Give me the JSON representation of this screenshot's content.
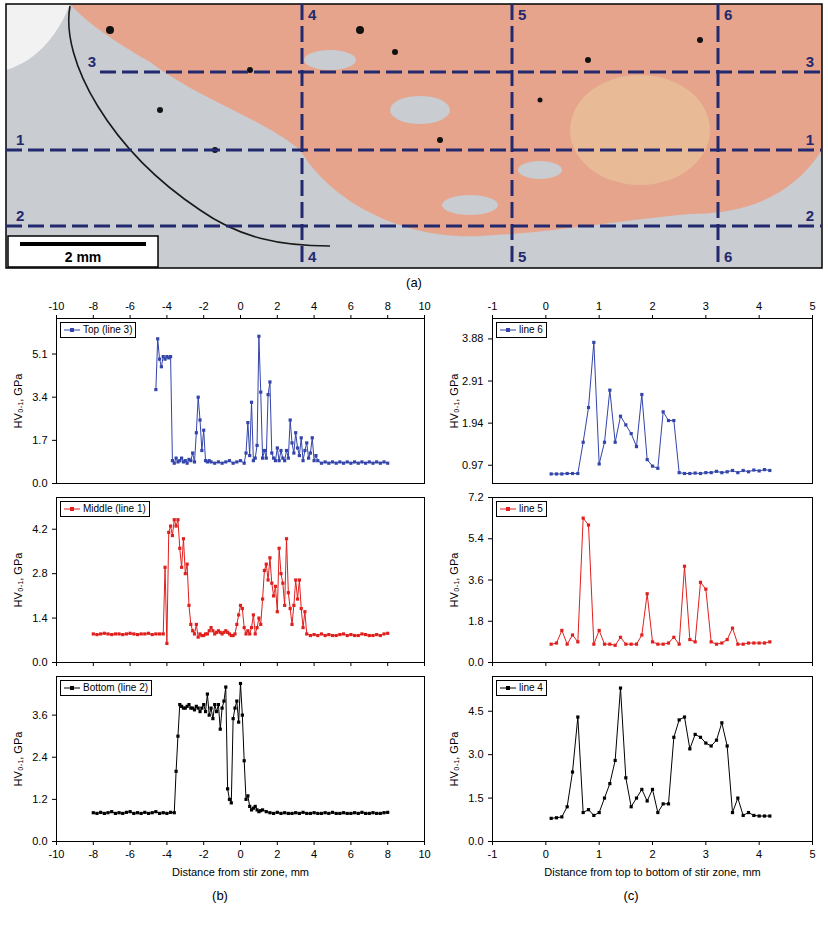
{
  "micrograph": {
    "panel": "(a)",
    "scale_bar": "2 mm",
    "horizontal_lines": [
      "3",
      "1",
      "2"
    ],
    "vertical_lines": [
      "4",
      "5",
      "6"
    ]
  },
  "chart_data": [
    {
      "type": "line",
      "panel": "(b)",
      "legend": "top-left",
      "y_label": "HV₀.₁, GPa",
      "xlim": [
        -10,
        10
      ],
      "xticks": [
        -10,
        -8,
        -6,
        -4,
        -2,
        0,
        2,
        4,
        6,
        8,
        10
      ],
      "ylim": [
        0,
        6.5
      ],
      "yticks": [
        {
          "value": 0,
          "label": "0.0"
        },
        1.7,
        3.4,
        5.1
      ],
      "x": [
        -4.6,
        -4.5,
        -4.4,
        -4.3,
        -4.2,
        -4.1,
        -4.0,
        -3.9,
        -3.8,
        -3.7,
        -3.6,
        -3.5,
        -3.4,
        -3.3,
        -3.2,
        -3.1,
        -3.0,
        -2.9,
        -2.8,
        -2.7,
        -2.6,
        -2.5,
        -2.4,
        -2.3,
        -2.2,
        -2.1,
        -2.0,
        -1.9,
        -1.8,
        -1.7,
        -1.6,
        -1.4,
        -1.2,
        -1.0,
        -0.8,
        -0.6,
        -0.4,
        -0.2,
        0.0,
        0.2,
        0.3,
        0.4,
        0.5,
        0.6,
        0.7,
        0.8,
        0.9,
        1.0,
        1.1,
        1.2,
        1.3,
        1.4,
        1.5,
        1.6,
        1.7,
        1.8,
        1.9,
        2.0,
        2.1,
        2.2,
        2.3,
        2.4,
        2.5,
        2.6,
        2.7,
        2.8,
        2.9,
        3.0,
        3.1,
        3.2,
        3.3,
        3.4,
        3.5,
        3.6,
        3.7,
        3.8,
        3.9,
        4.0,
        4.1,
        4.2,
        4.4,
        4.6,
        4.8,
        5.0,
        5.2,
        5.4,
        5.6,
        5.8,
        6.0,
        6.2,
        6.4,
        6.6,
        6.8,
        7.0,
        7.2,
        7.4,
        7.6,
        7.8,
        8.0
      ],
      "series": [
        {
          "name": "Top (line 3)",
          "color": "#3344aa",
          "marker": "square",
          "values": [
            3.7,
            5.7,
            4.9,
            4.6,
            5.0,
            4.9,
            5.0,
            4.95,
            5.0,
            0.9,
            0.8,
            1.0,
            0.85,
            0.9,
            1.0,
            0.85,
            0.9,
            0.8,
            0.95,
            0.9,
            1.2,
            0.85,
            2.0,
            3.4,
            2.5,
            1.3,
            2.1,
            0.9,
            0.85,
            0.9,
            0.85,
            0.8,
            0.85,
            0.8,
            0.85,
            0.9,
            0.8,
            0.85,
            0.9,
            0.8,
            1.2,
            2.4,
            1.1,
            3.2,
            0.9,
            1.0,
            1.5,
            5.8,
            3.6,
            1.0,
            1.3,
            1.0,
            3.5,
            4.0,
            1.2,
            1.0,
            0.9,
            1.4,
            0.9,
            1.3,
            1.0,
            0.9,
            1.3,
            1.0,
            2.5,
            1.6,
            1.2,
            2.0,
            1.4,
            1.1,
            1.8,
            0.9,
            1.3,
            1.6,
            1.0,
            1.2,
            1.8,
            0.9,
            1.1,
            0.9,
            0.8,
            0.85,
            0.8,
            0.85,
            0.8,
            0.85,
            0.8,
            0.85,
            0.8,
            0.85,
            0.8,
            0.85,
            0.8,
            0.85,
            0.8,
            0.85,
            0.8,
            0.85,
            0.8
          ]
        }
      ]
    },
    {
      "type": "line",
      "panel": "(b)",
      "legend": "top-left",
      "y_label": "HV₀.₁, GPa",
      "tick_labels": "y",
      "xlim": [
        -10,
        10
      ],
      "xticks": [
        -10,
        -8,
        -6,
        -4,
        -2,
        0,
        2,
        4,
        6,
        8,
        10
      ],
      "ylim": [
        0,
        5.2
      ],
      "yticks": [
        {
          "value": 0,
          "label": "0.0"
        },
        1.4,
        2.8,
        4.2
      ],
      "x": [
        -8.0,
        -7.8,
        -7.6,
        -7.4,
        -7.2,
        -7.0,
        -6.8,
        -6.6,
        -6.4,
        -6.2,
        -6.0,
        -5.8,
        -5.6,
        -5.4,
        -5.2,
        -5.0,
        -4.8,
        -4.6,
        -4.4,
        -4.2,
        -4.1,
        -4.0,
        -3.9,
        -3.8,
        -3.7,
        -3.6,
        -3.5,
        -3.4,
        -3.3,
        -3.2,
        -3.1,
        -3.0,
        -2.9,
        -2.8,
        -2.7,
        -2.6,
        -2.5,
        -2.4,
        -2.3,
        -2.2,
        -2.1,
        -2.0,
        -1.9,
        -1.8,
        -1.7,
        -1.6,
        -1.5,
        -1.4,
        -1.3,
        -1.2,
        -1.1,
        -1.0,
        -0.9,
        -0.8,
        -0.7,
        -0.6,
        -0.5,
        -0.4,
        -0.3,
        -0.2,
        -0.1,
        0.0,
        0.1,
        0.2,
        0.3,
        0.4,
        0.5,
        0.6,
        0.7,
        0.8,
        0.9,
        1.0,
        1.1,
        1.2,
        1.3,
        1.4,
        1.5,
        1.6,
        1.7,
        1.8,
        1.9,
        2.0,
        2.1,
        2.2,
        2.3,
        2.4,
        2.5,
        2.6,
        2.7,
        2.8,
        2.9,
        3.0,
        3.1,
        3.2,
        3.3,
        3.4,
        3.5,
        3.6,
        3.8,
        4.0,
        4.2,
        4.4,
        4.6,
        4.8,
        5.0,
        5.2,
        5.4,
        5.6,
        5.8,
        6.0,
        6.2,
        6.4,
        6.6,
        6.8,
        7.0,
        7.2,
        7.4,
        7.6,
        7.8,
        8.0
      ],
      "series": [
        {
          "name": "Middle (line 1)",
          "color": "#e0201e",
          "marker": "square",
          "values": [
            0.9,
            0.88,
            0.9,
            0.92,
            0.9,
            0.88,
            0.9,
            0.9,
            0.88,
            0.9,
            0.92,
            0.9,
            0.88,
            0.9,
            0.9,
            0.92,
            0.88,
            0.9,
            0.9,
            0.9,
            3.0,
            0.6,
            4.1,
            4.3,
            4.0,
            4.5,
            4.3,
            4.5,
            3.6,
            3.0,
            3.9,
            2.8,
            3.1,
            1.8,
            1.2,
            1.0,
            0.9,
            1.2,
            0.8,
            0.9,
            0.85,
            0.85,
            0.9,
            0.9,
            1.0,
            1.1,
            1.0,
            0.9,
            0.95,
            1.0,
            0.95,
            0.9,
            0.95,
            1.0,
            0.95,
            0.9,
            0.85,
            0.85,
            0.9,
            1.2,
            1.5,
            1.8,
            1.7,
            1.1,
            0.9,
            1.0,
            0.9,
            1.1,
            1.5,
            0.9,
            1.1,
            1.4,
            1.2,
            2.0,
            2.9,
            3.1,
            2.6,
            3.3,
            2.5,
            2.1,
            2.4,
            1.6,
            3.6,
            2.8,
            2.5,
            1.8,
            3.9,
            2.2,
            1.7,
            1.2,
            1.8,
            2.6,
            2.0,
            2.6,
            1.7,
            1.1,
            1.6,
            0.9,
            0.85,
            0.88,
            0.85,
            0.9,
            0.85,
            0.88,
            0.85,
            0.85,
            0.88,
            0.9,
            0.85,
            0.88,
            0.85,
            0.85,
            0.9,
            0.88,
            0.85,
            0.85,
            0.88,
            0.85,
            0.9,
            0.92
          ]
        }
      ]
    },
    {
      "type": "line",
      "panel": "(b)",
      "legend": "top-left",
      "y_label": "HV₀.₁, GPa",
      "x_label": "Distance from stir zone, mm",
      "xlim": [
        -10,
        10
      ],
      "xticks": [
        -10,
        -8,
        -6,
        -4,
        -2,
        0,
        2,
        4,
        6,
        8,
        10
      ],
      "ylim": [
        0,
        4.7
      ],
      "yticks": [
        {
          "value": 0,
          "label": "0.0"
        },
        1.2,
        2.4,
        3.6
      ],
      "x": [
        -8.0,
        -7.8,
        -7.6,
        -7.4,
        -7.2,
        -7.0,
        -6.8,
        -6.6,
        -6.4,
        -6.2,
        -6.0,
        -5.8,
        -5.6,
        -5.4,
        -5.2,
        -5.0,
        -4.8,
        -4.6,
        -4.4,
        -4.2,
        -4.0,
        -3.8,
        -3.6,
        -3.5,
        -3.4,
        -3.3,
        -3.2,
        -3.1,
        -3.0,
        -2.9,
        -2.8,
        -2.7,
        -2.6,
        -2.5,
        -2.4,
        -2.3,
        -2.2,
        -2.1,
        -2.0,
        -1.9,
        -1.8,
        -1.7,
        -1.6,
        -1.5,
        -1.4,
        -1.3,
        -1.2,
        -1.1,
        -1.0,
        -0.9,
        -0.8,
        -0.7,
        -0.6,
        -0.5,
        -0.4,
        -0.3,
        -0.2,
        -0.1,
        0.0,
        0.1,
        0.2,
        0.3,
        0.4,
        0.5,
        0.6,
        0.7,
        0.8,
        0.9,
        1.0,
        1.1,
        1.2,
        1.4,
        1.6,
        1.8,
        2.0,
        2.2,
        2.4,
        2.6,
        2.8,
        3.0,
        3.2,
        3.4,
        3.6,
        3.8,
        4.0,
        4.2,
        4.4,
        4.6,
        4.8,
        5.0,
        5.2,
        5.4,
        5.6,
        5.8,
        6.0,
        6.2,
        6.4,
        6.6,
        6.8,
        7.0,
        7.2,
        7.4,
        7.6,
        7.8,
        8.0
      ],
      "series": [
        {
          "name": "Bottom (line 2)",
          "color": "#000000",
          "marker": "square",
          "values": [
            0.82,
            0.8,
            0.83,
            0.8,
            0.82,
            0.85,
            0.8,
            0.82,
            0.8,
            0.83,
            0.85,
            0.8,
            0.82,
            0.8,
            0.83,
            0.8,
            0.82,
            0.85,
            0.8,
            0.82,
            0.8,
            0.83,
            0.82,
            2.0,
            3.0,
            3.9,
            3.85,
            3.8,
            3.8,
            3.85,
            3.9,
            3.8,
            3.8,
            3.75,
            3.85,
            3.8,
            3.7,
            3.8,
            3.9,
            3.7,
            4.2,
            3.6,
            3.8,
            3.5,
            3.9,
            3.7,
            3.9,
            3.2,
            3.8,
            4.0,
            4.4,
            1.5,
            1.2,
            1.1,
            3.5,
            3.8,
            4.0,
            3.4,
            4.5,
            3.6,
            2.3,
            1.2,
            1.3,
            1.0,
            0.9,
            0.95,
            1.0,
            0.9,
            0.85,
            0.88,
            0.9,
            0.85,
            0.82,
            0.8,
            0.83,
            0.8,
            0.82,
            0.8,
            0.8,
            0.82,
            0.8,
            0.83,
            0.8,
            0.8,
            0.82,
            0.8,
            0.8,
            0.82,
            0.8,
            0.83,
            0.8,
            0.8,
            0.82,
            0.8,
            0.8,
            0.82,
            0.8,
            0.83,
            0.8,
            0.8,
            0.82,
            0.8,
            0.8,
            0.82,
            0.83
          ]
        }
      ]
    },
    {
      "type": "line",
      "panel": "(c)",
      "legend": "top-left",
      "y_label": "HV₀.₁, GPa",
      "xlim": [
        -1,
        5
      ],
      "xticks": [
        -1,
        0,
        1,
        2,
        3,
        4,
        5
      ],
      "ylim": [
        0.55,
        4.35
      ],
      "yticks": [
        0.97,
        1.94,
        2.91,
        3.88
      ],
      "x": [
        0.1,
        0.2,
        0.3,
        0.4,
        0.5,
        0.6,
        0.7,
        0.8,
        0.9,
        1.0,
        1.1,
        1.2,
        1.3,
        1.4,
        1.5,
        1.6,
        1.7,
        1.8,
        1.9,
        2.0,
        2.1,
        2.2,
        2.3,
        2.4,
        2.5,
        2.6,
        2.7,
        2.8,
        2.9,
        3.0,
        3.1,
        3.2,
        3.3,
        3.4,
        3.5,
        3.6,
        3.7,
        3.8,
        3.9,
        4.0,
        4.1,
        4.2
      ],
      "series": [
        {
          "name": "line 6",
          "color": "#3344aa",
          "marker": "square",
          "values": [
            0.77,
            0.77,
            0.77,
            0.78,
            0.78,
            0.78,
            1.5,
            2.3,
            3.8,
            1.0,
            1.5,
            2.7,
            1.5,
            2.1,
            1.9,
            1.7,
            1.4,
            2.6,
            1.1,
            0.95,
            0.9,
            2.2,
            2.0,
            2.0,
            0.8,
            0.78,
            0.78,
            0.79,
            0.78,
            0.8,
            0.8,
            0.83,
            0.8,
            0.82,
            0.85,
            0.8,
            0.85,
            0.82,
            0.86,
            0.84,
            0.87,
            0.85
          ]
        }
      ]
    },
    {
      "type": "line",
      "panel": "(c)",
      "legend": "top-left",
      "y_label": "HV₀.₁, GPa",
      "tick_labels": "y",
      "xlim": [
        -1,
        5
      ],
      "xticks": [
        -1,
        0,
        1,
        2,
        3,
        4,
        5
      ],
      "ylim": [
        0,
        7.2
      ],
      "yticks": [
        {
          "value": 0,
          "label": "0.0"
        },
        1.8,
        3.6,
        5.4,
        7.2
      ],
      "x": [
        0.1,
        0.2,
        0.3,
        0.4,
        0.5,
        0.6,
        0.7,
        0.8,
        0.9,
        1.0,
        1.1,
        1.2,
        1.3,
        1.4,
        1.5,
        1.6,
        1.7,
        1.8,
        1.9,
        2.0,
        2.1,
        2.2,
        2.3,
        2.4,
        2.5,
        2.6,
        2.7,
        2.8,
        2.9,
        3.0,
        3.1,
        3.2,
        3.3,
        3.4,
        3.5,
        3.6,
        3.7,
        3.8,
        3.9,
        4.0,
        4.1,
        4.2
      ],
      "series": [
        {
          "name": "line 5",
          "color": "#e0201e",
          "marker": "square",
          "values": [
            0.8,
            0.85,
            1.4,
            0.8,
            1.2,
            0.9,
            6.3,
            6.0,
            0.8,
            1.4,
            0.8,
            0.8,
            0.75,
            1.1,
            0.8,
            0.8,
            0.8,
            1.2,
            3.0,
            0.9,
            0.8,
            0.8,
            0.85,
            1.1,
            0.8,
            4.2,
            1.0,
            0.9,
            3.5,
            3.2,
            0.9,
            0.8,
            0.85,
            1.0,
            1.5,
            0.8,
            0.8,
            0.85,
            0.85,
            0.85,
            0.85,
            0.9
          ]
        }
      ]
    },
    {
      "type": "line",
      "panel": "(c)",
      "legend": "top-left",
      "y_label": "HV₀.₁, GPa",
      "x_label": "Distance from top to bottom of stir zone, mm",
      "xlim": [
        -1,
        5
      ],
      "xticks": [
        -1,
        0,
        1,
        2,
        3,
        4,
        5
      ],
      "ylim": [
        0,
        5.7
      ],
      "yticks": [
        {
          "value": 0,
          "label": "0.0"
        },
        1.5,
        {
          "value": 3,
          "label": "3.0"
        },
        4.5
      ],
      "x": [
        0.1,
        0.2,
        0.3,
        0.4,
        0.5,
        0.6,
        0.7,
        0.8,
        0.9,
        1.0,
        1.1,
        1.2,
        1.3,
        1.4,
        1.5,
        1.6,
        1.7,
        1.8,
        1.9,
        2.0,
        2.1,
        2.2,
        2.3,
        2.4,
        2.5,
        2.6,
        2.7,
        2.8,
        2.9,
        3.0,
        3.1,
        3.2,
        3.3,
        3.4,
        3.5,
        3.6,
        3.7,
        3.8,
        3.9,
        4.0,
        4.1,
        4.2
      ],
      "series": [
        {
          "name": "line 4",
          "color": "#000000",
          "marker": "square",
          "values": [
            0.8,
            0.82,
            0.85,
            1.2,
            2.4,
            4.3,
            1.0,
            1.1,
            0.9,
            1.0,
            1.5,
            2.0,
            2.8,
            5.3,
            2.2,
            1.2,
            1.5,
            1.8,
            1.4,
            1.8,
            1.0,
            1.3,
            1.3,
            3.6,
            4.2,
            4.3,
            3.2,
            3.7,
            3.6,
            3.4,
            3.3,
            3.5,
            4.1,
            3.3,
            1.0,
            1.5,
            0.9,
            1.0,
            0.9,
            0.88,
            0.88,
            0.88
          ]
        }
      ]
    }
  ]
}
